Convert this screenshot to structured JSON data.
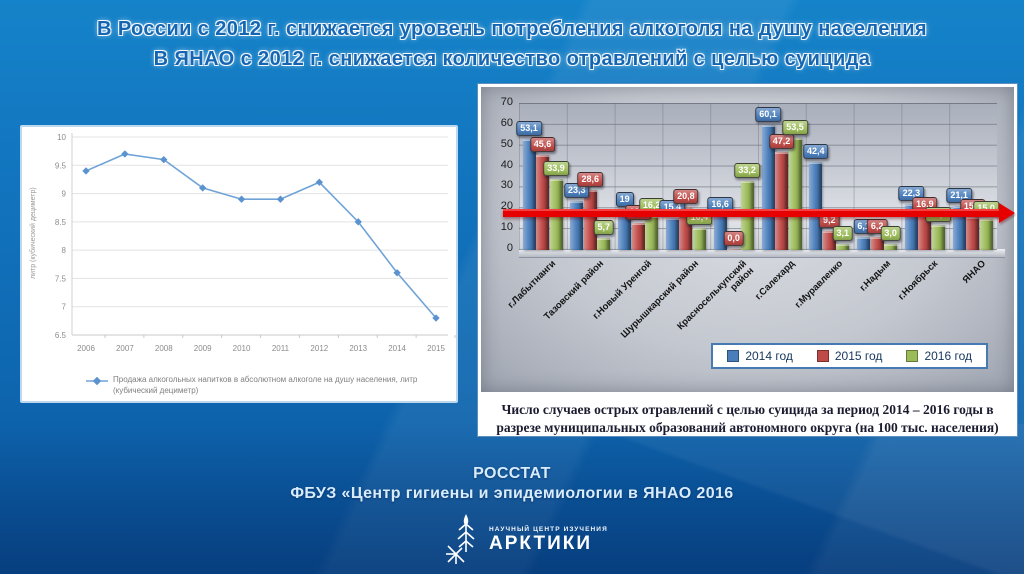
{
  "slide": {
    "title_line1": "В России с 2012 г. снижается уровень потребления алкоголя на душу населения",
    "title_line2": "В ЯНАО с 2012 г. снижается количество отравлений с целью суицида",
    "footer_line1": "РОССТАТ",
    "footer_line2": "ФБУЗ «Центр гигиены и эпидемиологии в ЯНАО 2016",
    "logo": {
      "icon": "snowflake-branch-icon",
      "top": "НАУЧНЫЙ ЦЕНТР ИЗУЧЕНИЯ",
      "bottom": "АРКТИКИ"
    }
  },
  "colors": {
    "line": "#6fa3d8",
    "arrow": "#e60000",
    "bar_2014": "#4a7ebb",
    "bar_2015": "#be4b48",
    "bar_2016": "#9bbb59"
  },
  "chart_data": [
    {
      "id": "alcohol-consumption-line",
      "type": "line",
      "x": [
        "2006",
        "2007",
        "2008",
        "2009",
        "2010",
        "2011",
        "2012",
        "2013",
        "2014",
        "2015"
      ],
      "values": [
        9.4,
        9.7,
        9.6,
        9.1,
        8.9,
        8.9,
        9.2,
        8.5,
        7.6,
        6.8
      ],
      "ylim": [
        6.5,
        10
      ],
      "yticks": [
        10,
        9.5,
        9,
        8.5,
        8,
        7.5,
        7,
        6.5
      ],
      "ytick_labels": [
        "10",
        "9.5",
        "9",
        "8.5",
        "8",
        "7.5",
        "7",
        "6.5"
      ],
      "ylabel": "литр (кубический дециметр)",
      "legend": "Продажа алкогольных напитков в абсолютном алкоголе на душу населения, литр (кубический дециметр)",
      "grid": true,
      "line_color": "#6fa3d8"
    },
    {
      "id": "suicide-poisonings-bars",
      "type": "bar",
      "categories": [
        "г.Лабытнанги",
        "Тазовский район",
        "г.Новый Уренгой",
        "Шурышкарский район",
        "Красноселькупский район",
        "г.Салехард",
        "г.Муравленко",
        "г.Надым",
        "г.Ноябрьск",
        "ЯНАО"
      ],
      "series": [
        {
          "name": "2014 год",
          "color": "#4a7ebb",
          "values": [
            53.1,
            23.3,
            19,
            15.4,
            16.6,
            60.1,
            42.4,
            6.1,
            22.3,
            21.1
          ],
          "labels": [
            "53,1",
            "23,3",
            "19",
            "15,4",
            "16,6",
            "60,1",
            "42,4",
            "6,1",
            "22,3",
            "21,1"
          ]
        },
        {
          "name": "2015 год",
          "color": "#be4b48",
          "values": [
            45.6,
            28.6,
            13.0,
            20.8,
            0.0,
            47.2,
            9.2,
            6.2,
            16.9,
            15.7
          ],
          "labels": [
            "45,6",
            "28,6",
            "13,0",
            "20,8",
            "0,0",
            "47,2",
            "9,2",
            "6,2",
            "16,9",
            "15,7"
          ]
        },
        {
          "name": "2016 год",
          "color": "#9bbb59",
          "values": [
            33.9,
            5.7,
            16.2,
            10.4,
            33.2,
            53.5,
            3.1,
            3.0,
            12.1,
            15.0
          ],
          "labels": [
            "33,9",
            "5,7",
            "16,2",
            "10,4",
            "33,2",
            "53,5",
            "3,1",
            "3,0",
            "12,1",
            "15,0"
          ]
        }
      ],
      "ylim": [
        0,
        70
      ],
      "yticks": [
        0,
        10,
        20,
        30,
        40,
        50,
        60,
        70
      ],
      "reference_line_value": 17.5,
      "legend_position": "bottom-right",
      "caption": "Число случаев острых отравлений с целью суицида за период 2014 – 2016 годы в разрезе муниципальных образований автономного округа (на 100 тыс. населения)"
    }
  ]
}
